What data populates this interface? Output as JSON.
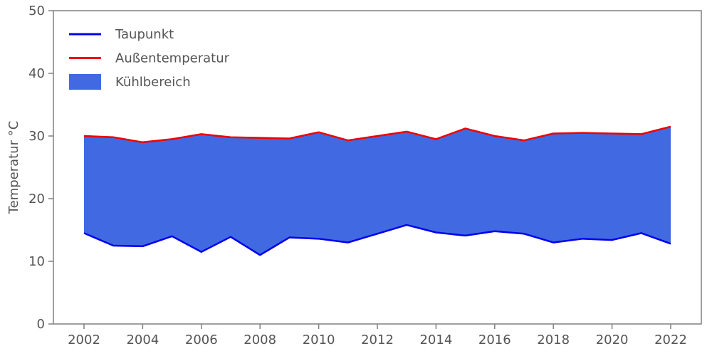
{
  "chart_data": {
    "type": "area",
    "title": "",
    "xlabel": "",
    "ylabel": "Temperatur °C",
    "x": [
      2002,
      2003,
      2004,
      2005,
      2006,
      2007,
      2008,
      2009,
      2010,
      2011,
      2012,
      2013,
      2014,
      2015,
      2016,
      2017,
      2018,
      2019,
      2020,
      2021,
      2022
    ],
    "series": [
      {
        "name": "Taupunkt",
        "color": "#0000ee",
        "values": [
          14.5,
          12.5,
          12.4,
          14.0,
          11.5,
          13.9,
          11.0,
          13.8,
          13.6,
          13.0,
          14.4,
          15.8,
          14.6,
          14.1,
          14.8,
          14.4,
          13.0,
          13.6,
          13.4,
          14.5,
          12.8
        ]
      },
      {
        "name": "Außentemperatur",
        "color": "#ee0000",
        "values": [
          30.0,
          29.8,
          29.0,
          29.5,
          30.3,
          29.8,
          29.7,
          29.6,
          30.6,
          29.3,
          30.0,
          30.7,
          29.5,
          31.2,
          30.0,
          29.3,
          30.4,
          30.5,
          30.4,
          30.3,
          31.5
        ]
      }
    ],
    "fill_between": {
      "name": "Kühlbereich",
      "color": "#4169e1",
      "lower_series": "Taupunkt",
      "upper_series": "Außentemperatur"
    },
    "legend": {
      "position": "upper left",
      "entries": [
        {
          "label": "Taupunkt",
          "kind": "line",
          "color": "#0000ee"
        },
        {
          "label": "Außentemperatur",
          "kind": "line",
          "color": "#ee0000"
        },
        {
          "label": "Kühlbereich",
          "kind": "patch",
          "color": "#4169e1"
        }
      ]
    },
    "ylim": [
      0,
      50
    ],
    "yticks": [
      0,
      10,
      20,
      30,
      40,
      50
    ],
    "xticks": [
      2002,
      2004,
      2006,
      2008,
      2010,
      2012,
      2014,
      2016,
      2018,
      2020,
      2022
    ],
    "grid": false,
    "colors": {
      "text": "#555555",
      "spine": "#808080",
      "background": "#ffffff"
    }
  }
}
